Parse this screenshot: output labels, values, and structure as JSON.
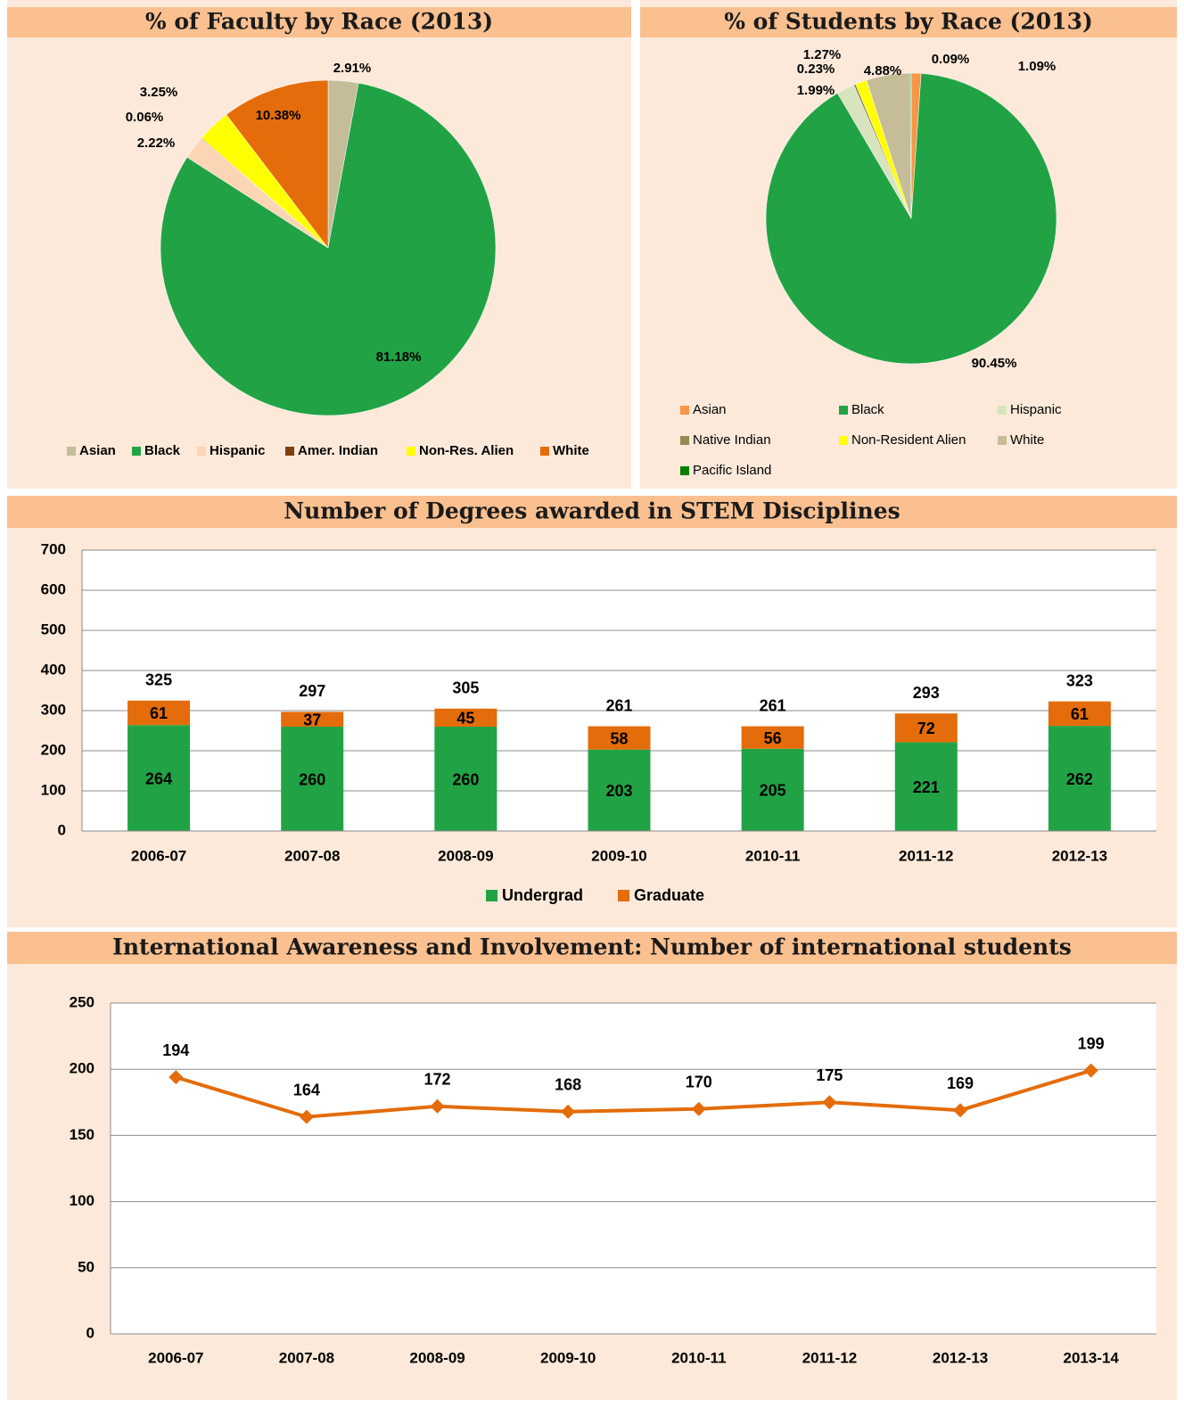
{
  "chart_data": [
    {
      "type": "pie",
      "title": "% of Faculty by Race (2013)",
      "categories": [
        "Asian",
        "Black",
        "Hispanic",
        "Amer. Indian",
        "Non-Res. Alien",
        "White"
      ],
      "values": [
        2.91,
        81.18,
        2.22,
        0.06,
        3.25,
        10.38
      ],
      "value_labels": [
        "2.91%",
        "81.18%",
        "2.22%",
        "0.06%",
        "3.25%",
        "10.38%"
      ],
      "colors": [
        "#c4bd97",
        "#21a345",
        "#fcd5b5",
        "#7f3f0f",
        "#ffff00",
        "#e46c0a"
      ]
    },
    {
      "type": "pie",
      "title": "% of Students by Race (2013)",
      "categories": [
        "Asian",
        "Black",
        "Hispanic",
        "Native Indian",
        "Non-Resident Alien",
        "White",
        "Pacific Island"
      ],
      "values": [
        1.09,
        90.45,
        1.99,
        0.23,
        1.27,
        4.88,
        0.09
      ],
      "value_labels": [
        "1.09%",
        "90.45%",
        "1.99%",
        "0.23%",
        "1.27%",
        "4.88%",
        "0.09%"
      ],
      "colors": [
        "#f79646",
        "#21a345",
        "#d7e4bd",
        "#948a54",
        "#ffff00",
        "#c4bd97",
        "#008000"
      ]
    },
    {
      "type": "bar",
      "title": "Number of Degrees awarded in STEM Disciplines",
      "categories": [
        "2006-07",
        "2007-08",
        "2008-09",
        "2009-10",
        "2010-11",
        "2011-12",
        "2012-13"
      ],
      "series": [
        {
          "name": "Undergrad",
          "color": "#21a345",
          "values": [
            264,
            260,
            260,
            203,
            205,
            221,
            262
          ]
        },
        {
          "name": "Graduate",
          "color": "#e46c0a",
          "values": [
            61,
            37,
            45,
            58,
            56,
            72,
            61
          ]
        }
      ],
      "totals": [
        325,
        297,
        305,
        261,
        261,
        293,
        323
      ],
      "ylim": [
        0,
        700
      ],
      "yticks": [
        0,
        100,
        200,
        300,
        400,
        500,
        600,
        700
      ],
      "grid": true
    },
    {
      "type": "line",
      "title": "International Awareness and Involvement:  Number of international students",
      "categories": [
        "2006-07",
        "2007-08",
        "2008-09",
        "2009-10",
        "2010-11",
        "2011-12",
        "2012-13",
        "2013-14"
      ],
      "values": [
        194,
        164,
        172,
        168,
        170,
        175,
        169,
        199
      ],
      "color": "#e46c0a",
      "ylim": [
        0,
        250
      ],
      "yticks": [
        0,
        50,
        100,
        150,
        200,
        250
      ],
      "grid": true
    }
  ]
}
